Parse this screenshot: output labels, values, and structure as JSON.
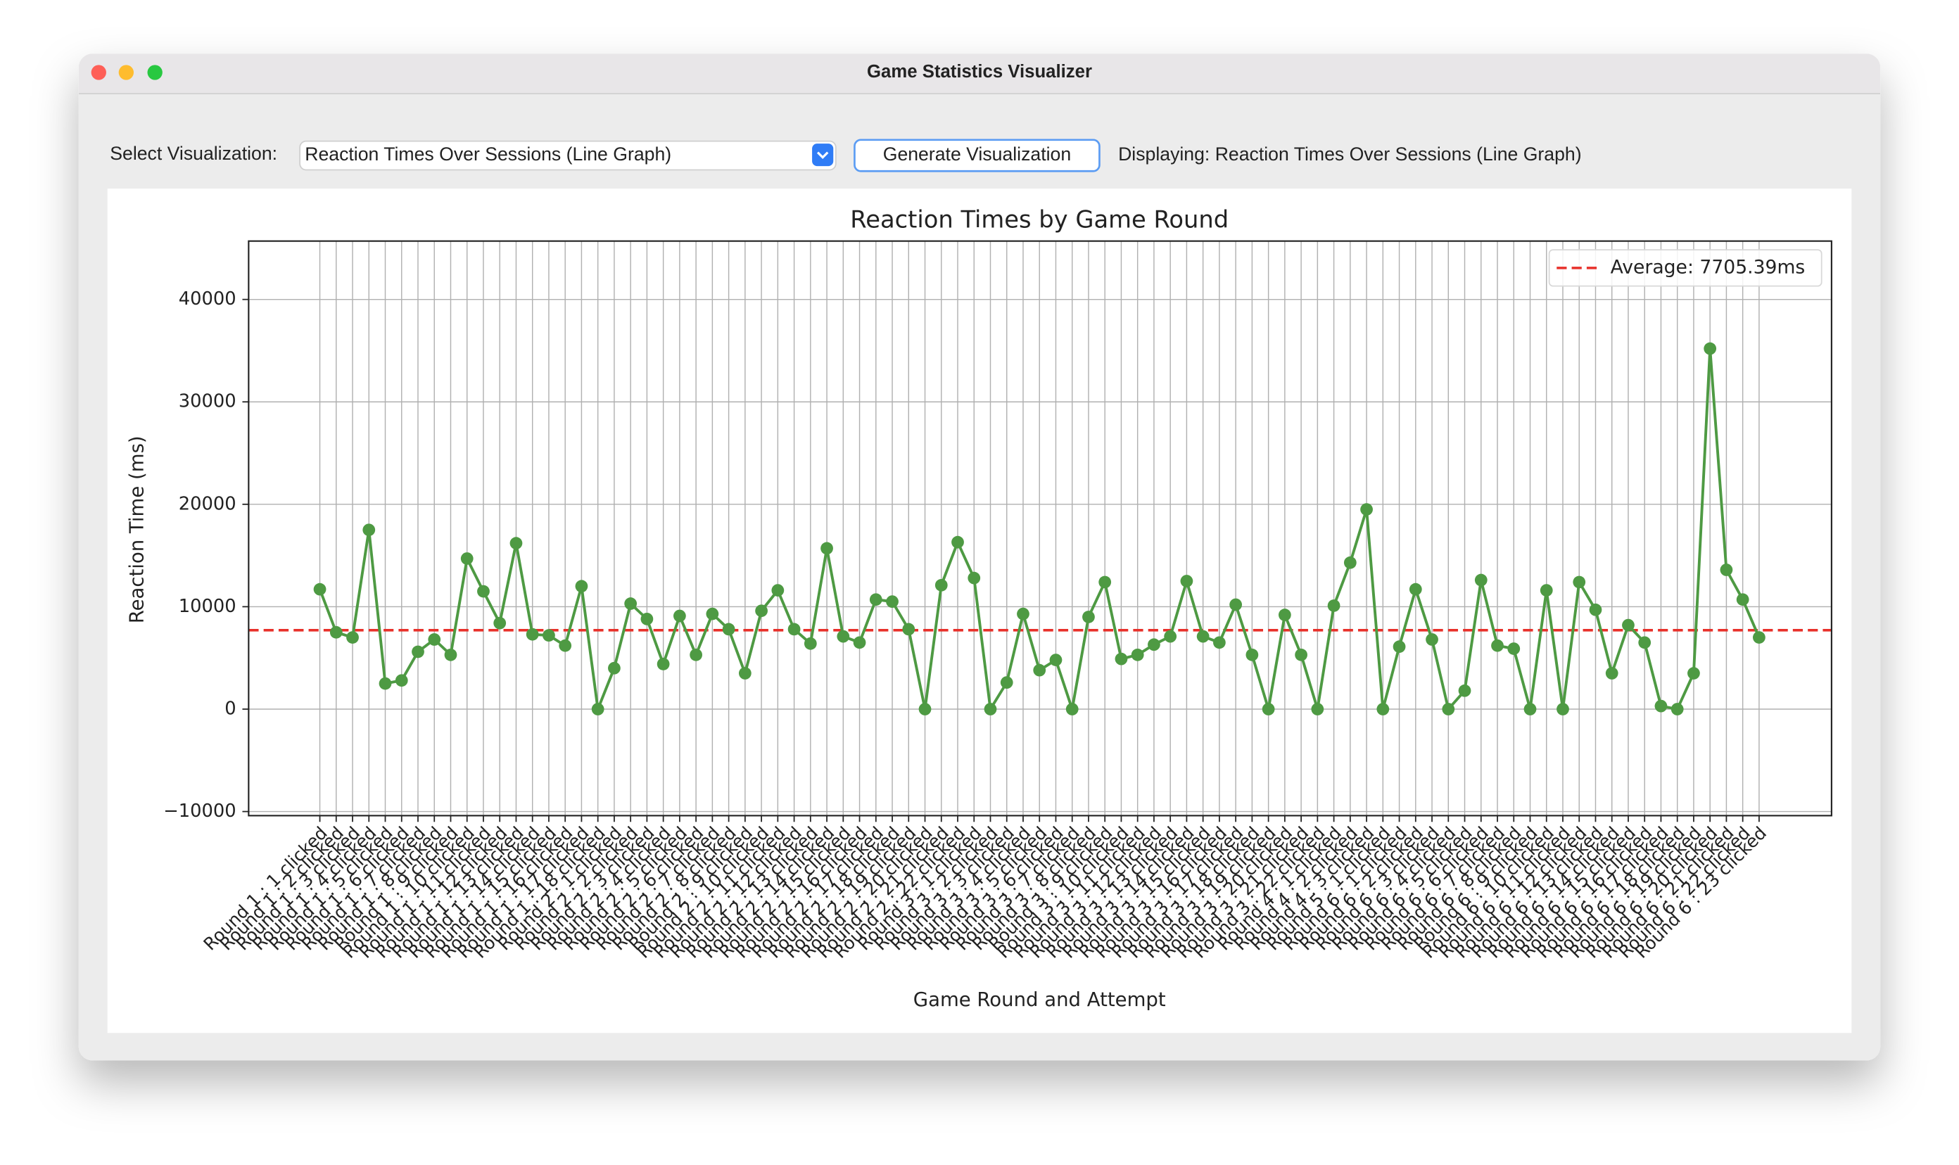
{
  "window_title": "Game Statistics Visualizer",
  "controls": {
    "select_label": "Select Visualization:",
    "select_value": "Reaction Times Over Sessions (Line Graph)",
    "button": "Generate Visualization",
    "status": "Displaying: Reaction Times Over Sessions (Line Graph)"
  },
  "chart_data": {
    "type": "line",
    "title": "Reaction Times by Game Round",
    "x_label": "Game Round and Attempt",
    "y_label": "Reaction Time (ms)",
    "categories": [
      "Round 1 : 1 clicked",
      "Round 1 : 2 clicked",
      "Round 1 : 3 clicked",
      "Round 1 : 4 clicked",
      "Round 1 : 5 clicked",
      "Round 1 : 6 clicked",
      "Round 1 : 7 clicked",
      "Round 1 : 8 clicked",
      "Round 1 : 9 clicked",
      "Round 1 : 10 clicked",
      "Round 1 : 11 clicked",
      "Round 1 : 12 clicked",
      "Round 1 : 13 clicked",
      "Round 1 : 14 clicked",
      "Round 1 : 15 clicked",
      "Round 1 : 16 clicked",
      "Round 1 : 17 clicked",
      "Round 1 : 18 clicked",
      "Round 2 : 1 clicked",
      "Round 2 : 2 clicked",
      "Round 2 : 3 clicked",
      "Round 2 : 4 clicked",
      "Round 2 : 5 clicked",
      "Round 2 : 6 clicked",
      "Round 2 : 7 clicked",
      "Round 2 : 8 clicked",
      "Round 2 : 9 clicked",
      "Round 2 : 10 clicked",
      "Round 2 : 11 clicked",
      "Round 2 : 12 clicked",
      "Round 2 : 13 clicked",
      "Round 2 : 14 clicked",
      "Round 2 : 15 clicked",
      "Round 2 : 16 clicked",
      "Round 2 : 17 clicked",
      "Round 2 : 18 clicked",
      "Round 2 : 19 clicked",
      "Round 2 : 20 clicked",
      "Round 2 : 21 clicked",
      "Round 2 : 22 clicked",
      "Round 3 : 1 clicked",
      "Round 3 : 2 clicked",
      "Round 3 : 3 clicked",
      "Round 3 : 4 clicked",
      "Round 3 : 5 clicked",
      "Round 3 : 6 clicked",
      "Round 3 : 7 clicked",
      "Round 3 : 8 clicked",
      "Round 3 : 9 clicked",
      "Round 3 : 10 clicked",
      "Round 3 : 11 clicked",
      "Round 3 : 12 clicked",
      "Round 3 : 13 clicked",
      "Round 3 : 14 clicked",
      "Round 3 : 15 clicked",
      "Round 3 : 16 clicked",
      "Round 3 : 17 clicked",
      "Round 3 : 18 clicked",
      "Round 3 : 19 clicked",
      "Round 3 : 20 clicked",
      "Round 3 : 21 clicked",
      "Round 3 : 22 clicked",
      "Round 4 : 1 clicked",
      "Round 4 : 2 clicked",
      "Round 4 : 3 clicked",
      "Round 5 : 1 clicked",
      "Round 6 : 1 clicked",
      "Round 6 : 2 clicked",
      "Round 6 : 3 clicked",
      "Round 6 : 4 clicked",
      "Round 6 : 5 clicked",
      "Round 6 : 6 clicked",
      "Round 6 : 7 clicked",
      "Round 6 : 8 clicked",
      "Round 6 : 9 clicked",
      "Round 6 : 10 clicked",
      "Round 6 : 11 clicked",
      "Round 6 : 12 clicked",
      "Round 6 : 13 clicked",
      "Round 6 : 14 clicked",
      "Round 6 : 15 clicked",
      "Round 6 : 16 clicked",
      "Round 6 : 17 clicked",
      "Round 6 : 18 clicked",
      "Round 6 : 19 clicked",
      "Round 6 : 20 clicked",
      "Round 6 : 21 clicked",
      "Round 6 : 22 clicked",
      "Round 6 : 23 clicked"
    ],
    "series": [
      {
        "name": "Reaction Time",
        "color": "#4e9a43",
        "values": [
          11700,
          7500,
          7000,
          17500,
          2500,
          2800,
          5600,
          6800,
          5300,
          14700,
          11500,
          8400,
          16200,
          7300,
          7200,
          6200,
          12000,
          0,
          4000,
          10300,
          8800,
          4400,
          9100,
          5300,
          9300,
          7800,
          3500,
          9600,
          11600,
          7800,
          6400,
          15700,
          7100,
          6500,
          10700,
          10500,
          7800,
          0,
          12100,
          16300,
          12800,
          0,
          2600,
          9300,
          3800,
          4800,
          0,
          9000,
          12400,
          4900,
          5300,
          6300,
          7100,
          12500,
          7100,
          6500,
          10200,
          5300,
          0,
          9200,
          5300,
          0,
          10100,
          14300,
          19500,
          0,
          6100,
          11700,
          6800,
          0,
          1800,
          12600,
          6200,
          5900,
          0,
          11600,
          0,
          12400,
          9700,
          3500,
          8200,
          6500,
          300,
          0,
          3500,
          35200,
          13600,
          10700,
          7000
        ]
      }
    ],
    "average_line": {
      "label": "Average: 7705.39ms",
      "value": 7705.39,
      "color": "#e8302a"
    },
    "ylim": [
      -10400,
      45700
    ],
    "yticks": [
      {
        "value": -10000,
        "label": "−10000"
      },
      0,
      10000,
      20000,
      30000,
      40000
    ],
    "grid": true,
    "legend": "upper right"
  }
}
